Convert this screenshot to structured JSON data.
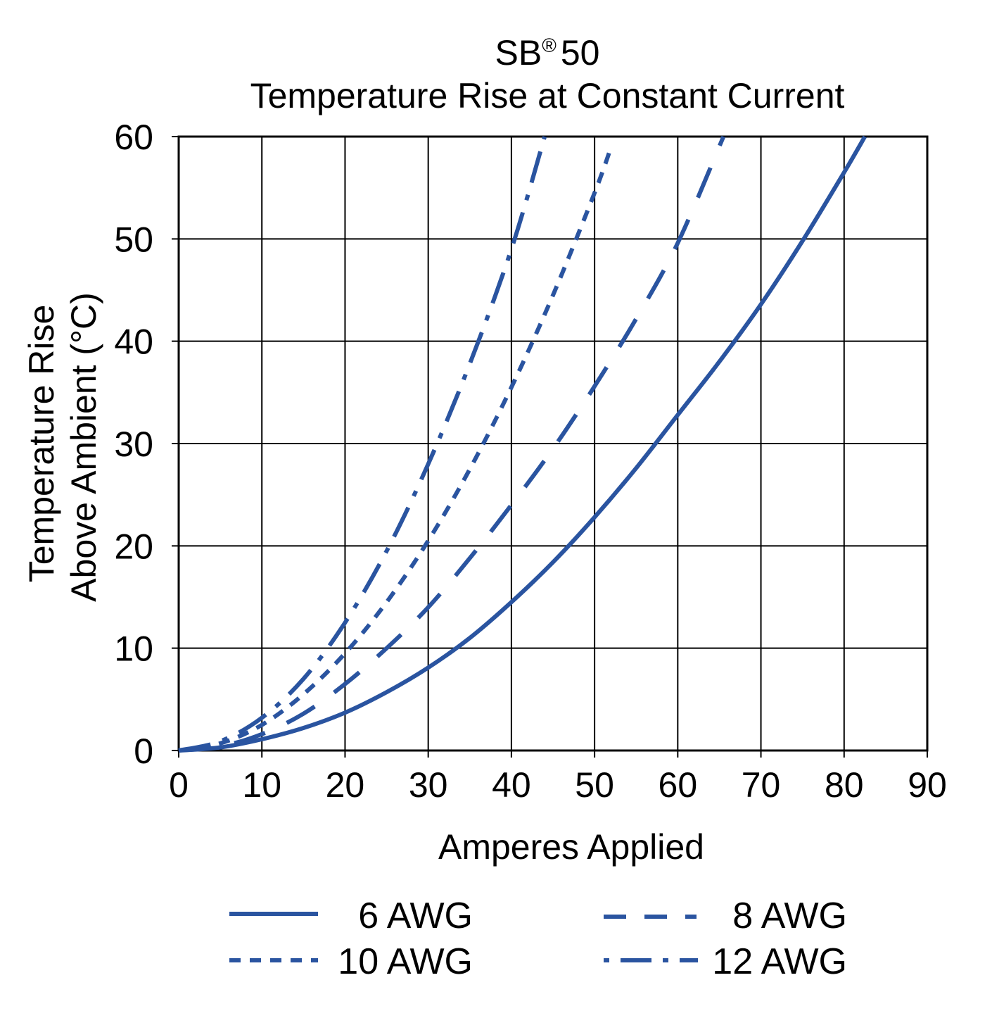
{
  "chart_data": {
    "type": "line",
    "title_brand": "SB",
    "title_mark": "®",
    "title_model": "50",
    "title": "Temperature Rise at Constant Current",
    "xlabel": "Amperes Applied",
    "ylabel_line1": "Temperature Rise",
    "ylabel_line2": "Above Ambient (°C)",
    "xlim": [
      0,
      90
    ],
    "ylim": [
      0,
      60
    ],
    "x_ticks": [
      0,
      10,
      20,
      30,
      40,
      50,
      60,
      70,
      80,
      90
    ],
    "y_ticks": [
      0,
      10,
      20,
      30,
      40,
      50,
      60
    ],
    "x_tick_labels": [
      "0",
      "10",
      "20",
      "30",
      "40",
      "50",
      "60",
      "70",
      "80",
      "90"
    ],
    "y_tick_labels": [
      "0",
      "10",
      "20",
      "30",
      "40",
      "50",
      "60"
    ],
    "grid": true,
    "legend_position": "bottom",
    "line_color": "#2a54a0",
    "series": [
      {
        "name": "6 AWG",
        "style": "solid",
        "x": [
          0,
          5,
          10,
          15,
          20,
          25,
          30,
          35,
          40,
          45,
          50,
          55,
          60,
          65,
          70,
          75,
          80,
          82.5
        ],
        "y": [
          0,
          0.3,
          1.1,
          2.2,
          3.7,
          5.7,
          8.1,
          11.0,
          14.5,
          18.4,
          22.8,
          27.6,
          32.8,
          38.0,
          43.6,
          49.8,
          56.5,
          60
        ]
      },
      {
        "name": "8 AWG",
        "style": "dash",
        "x": [
          0,
          5,
          10,
          15,
          20,
          25,
          30,
          35,
          40,
          45,
          50,
          55,
          60,
          65.5
        ],
        "y": [
          0,
          0.4,
          1.6,
          3.6,
          6.5,
          10.0,
          14.0,
          18.8,
          24.0,
          29.5,
          35.6,
          42.2,
          49.6,
          60
        ]
      },
      {
        "name": "10 AWG",
        "style": "dot",
        "x": [
          0,
          5,
          10,
          15,
          20,
          25,
          30,
          35,
          40,
          45,
          50,
          52
        ],
        "y": [
          0,
          0.7,
          2.5,
          5.5,
          9.5,
          14.5,
          20.5,
          27.5,
          35.5,
          44.5,
          54.5,
          59
        ]
      },
      {
        "name": "12 AWG",
        "style": "dash-dot",
        "x": [
          0,
          5,
          10,
          15,
          20,
          25,
          30,
          35,
          40,
          44
        ],
        "y": [
          0,
          0.9,
          3.2,
          7.0,
          12.5,
          19.5,
          28.0,
          37.8,
          49.0,
          60
        ]
      }
    ]
  }
}
